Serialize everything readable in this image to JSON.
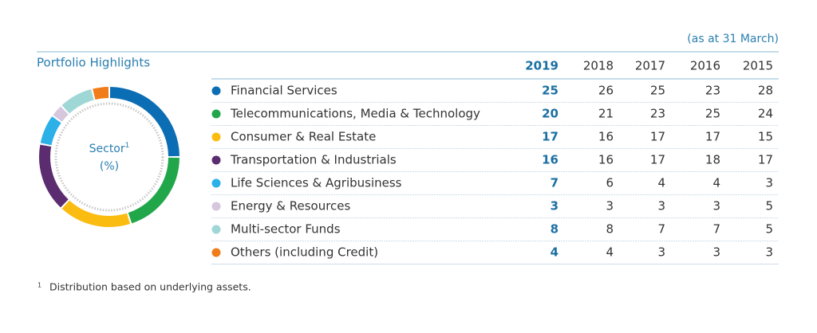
{
  "note": "(as at 31 March)",
  "title": "Portfolio Highlights",
  "donut": {
    "label": "Sector",
    "superscript": "1",
    "unit": "(%)"
  },
  "table": {
    "columns": [
      "2019",
      "2018",
      "2017",
      "2016",
      "2015"
    ],
    "rows": [
      {
        "label": "Financial Services",
        "color": "#0b6db3",
        "values": [
          25,
          26,
          25,
          23,
          28
        ]
      },
      {
        "label": "Telecommunications, Media & Technology",
        "color": "#22a64a",
        "values": [
          20,
          21,
          23,
          25,
          24
        ]
      },
      {
        "label": "Consumer & Real Estate",
        "color": "#fbbc12",
        "values": [
          17,
          16,
          17,
          17,
          15
        ]
      },
      {
        "label": "Transportation & Industrials",
        "color": "#5b2c6f",
        "values": [
          16,
          16,
          17,
          18,
          17
        ]
      },
      {
        "label": "Life Sciences & Agribusiness",
        "color": "#2bb0e8",
        "values": [
          7,
          6,
          4,
          4,
          3
        ]
      },
      {
        "label": "Energy & Resources",
        "color": "#d6c6de",
        "values": [
          3,
          3,
          3,
          3,
          5
        ]
      },
      {
        "label": "Multi-sector Funds",
        "color": "#9fd7d6",
        "values": [
          8,
          8,
          7,
          7,
          5
        ]
      },
      {
        "label": "Others (including Credit)",
        "color": "#f07c1a",
        "values": [
          4,
          4,
          3,
          3,
          3
        ]
      }
    ]
  },
  "footnote": {
    "marker": "1",
    "text": "Distribution based on underlying assets."
  }
}
